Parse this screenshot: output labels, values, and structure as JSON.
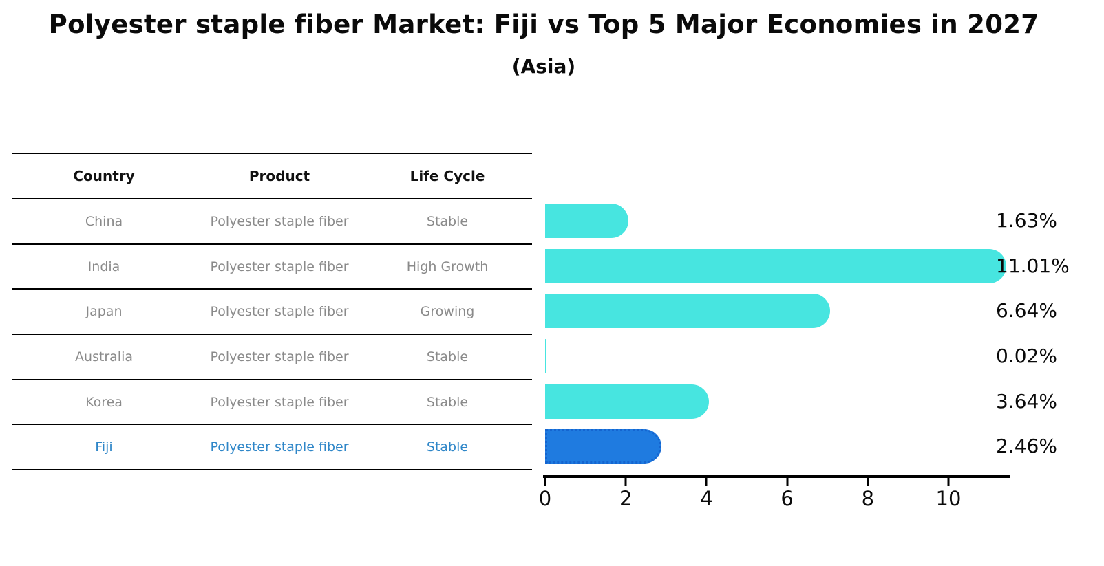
{
  "title": "Polyester staple fiber Market: Fiji vs Top 5 Major Economies in 2027",
  "subtitle": "(Asia)",
  "table": {
    "columns": [
      "Country",
      "Product",
      "Life Cycle"
    ],
    "rows": [
      {
        "country": "China",
        "product": "Polyester staple fiber",
        "life_cycle": "Stable",
        "highlight": false
      },
      {
        "country": "India",
        "product": "Polyester staple fiber",
        "life_cycle": "High Growth",
        "highlight": false
      },
      {
        "country": "Japan",
        "product": "Polyester staple fiber",
        "life_cycle": "Growing",
        "highlight": false
      },
      {
        "country": "Australia",
        "product": "Polyester staple fiber",
        "life_cycle": "Stable",
        "highlight": false
      },
      {
        "country": "Korea",
        "product": "Polyester staple fiber",
        "life_cycle": "Stable",
        "highlight": false
      },
      {
        "country": "Fiji",
        "product": "Polyester staple fiber",
        "life_cycle": "Stable",
        "highlight": true
      }
    ]
  },
  "chart_data": {
    "type": "bar",
    "orientation": "horizontal",
    "title": "Polyester staple fiber Market: Fiji vs Top 5 Major Economies in 2027",
    "subtitle": "(Asia)",
    "categories": [
      "China",
      "India",
      "Japan",
      "Australia",
      "Korea",
      "Fiji"
    ],
    "values": [
      1.63,
      11.01,
      6.64,
      0.02,
      3.64,
      2.46
    ],
    "value_labels": [
      "1.63%",
      "11.01%",
      "6.64%",
      "0.02%",
      "3.64%",
      "2.46%"
    ],
    "highlight_category": "Fiji",
    "highlight_index": 5,
    "xticks": [
      "0",
      "2",
      "4",
      "6",
      "8",
      "10"
    ],
    "xtick_values": [
      0,
      2,
      4,
      6,
      8,
      10
    ],
    "xlim": [
      0,
      11.55
    ],
    "grid": false,
    "legend": false,
    "colors": {
      "bar": "#47E5E0",
      "highlight_bar": "#1F7BE0",
      "highlight_edge": "#1565D0",
      "axis": "#000000",
      "value_label": "#0A0A0A",
      "table_header": "#111111",
      "table_text": "#8A8A8A",
      "highlight_text": "#2E86C8"
    }
  }
}
